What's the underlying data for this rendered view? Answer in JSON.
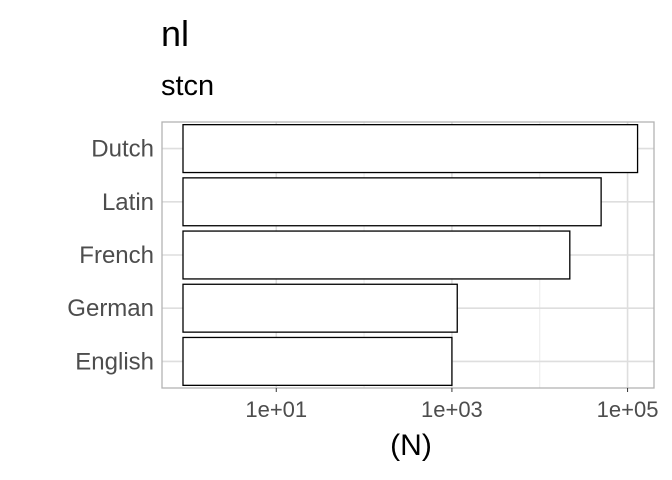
{
  "chart_data": {
    "type": "bar",
    "orientation": "horizontal",
    "title": "nl",
    "subtitle": "stcn",
    "xlabel": "(N)",
    "ylabel": "",
    "x_scale": "log10",
    "xlim": [
      0.5,
      200000
    ],
    "x_ticks": [
      10,
      1000,
      100000
    ],
    "x_tick_labels": [
      "1e+01",
      "1e+03",
      "1e+05"
    ],
    "categories": [
      "Dutch",
      "Latin",
      "French",
      "German",
      "English"
    ],
    "values": [
      130000,
      50000,
      22000,
      1150,
      1000
    ],
    "bar_fill": "#ffffff",
    "bar_stroke": "#000000",
    "grid": true,
    "legend": "none"
  }
}
